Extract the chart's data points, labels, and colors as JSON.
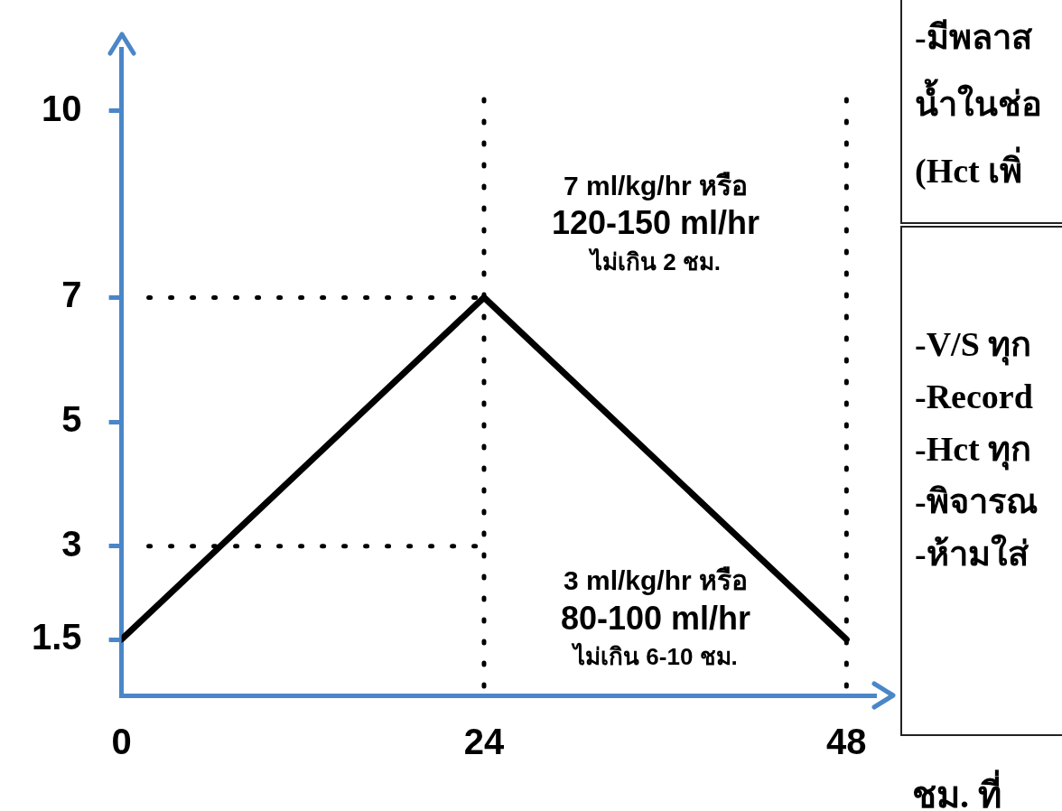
{
  "chart_data": {
    "type": "line",
    "xlabel": "ชม. ที่",
    "x": [
      0,
      24,
      48
    ],
    "series": [
      {
        "color": "#000000",
        "values": [
          1.5,
          7,
          1.5
        ]
      }
    ],
    "xlim": [
      0,
      50
    ],
    "ylim": [
      0.6,
      11
    ],
    "xticks": [
      0,
      24,
      48
    ],
    "yticks": [
      1.5,
      3,
      5,
      7,
      10
    ],
    "grid": false,
    "legend": false,
    "ref_lines": [
      {
        "axis": "x",
        "value": 24,
        "color": "#000000",
        "line_style": "dotted"
      },
      {
        "axis": "x",
        "value": 48,
        "color": "#000000",
        "line_style": "dotted"
      },
      {
        "axis": "y",
        "value": 7,
        "color": "#000000",
        "line_style": "dotted"
      },
      {
        "axis": "y",
        "value": 3,
        "color": "#000000",
        "line_style": "dotted"
      }
    ],
    "annotations": [
      {
        "text": "7 ml/kg/hr หรือ\n120-150 ml/hr\nไม่เกิน 2 ชม.",
        "x": 24,
        "y": 7
      },
      {
        "text": "3 ml/kg/hr หรือ\n80-100 ml/hr\nไม่เกิน 6-10 ชม.",
        "x": 24,
        "y": 3
      },
      "-มีพลาส\nน้ำในช่อ\n(Hct เพิ่",
      "-V/S ทุก\n-Record\n-Hct ทุก\n-พิจารณ\n-ห้ามใส่"
    ]
  }
}
